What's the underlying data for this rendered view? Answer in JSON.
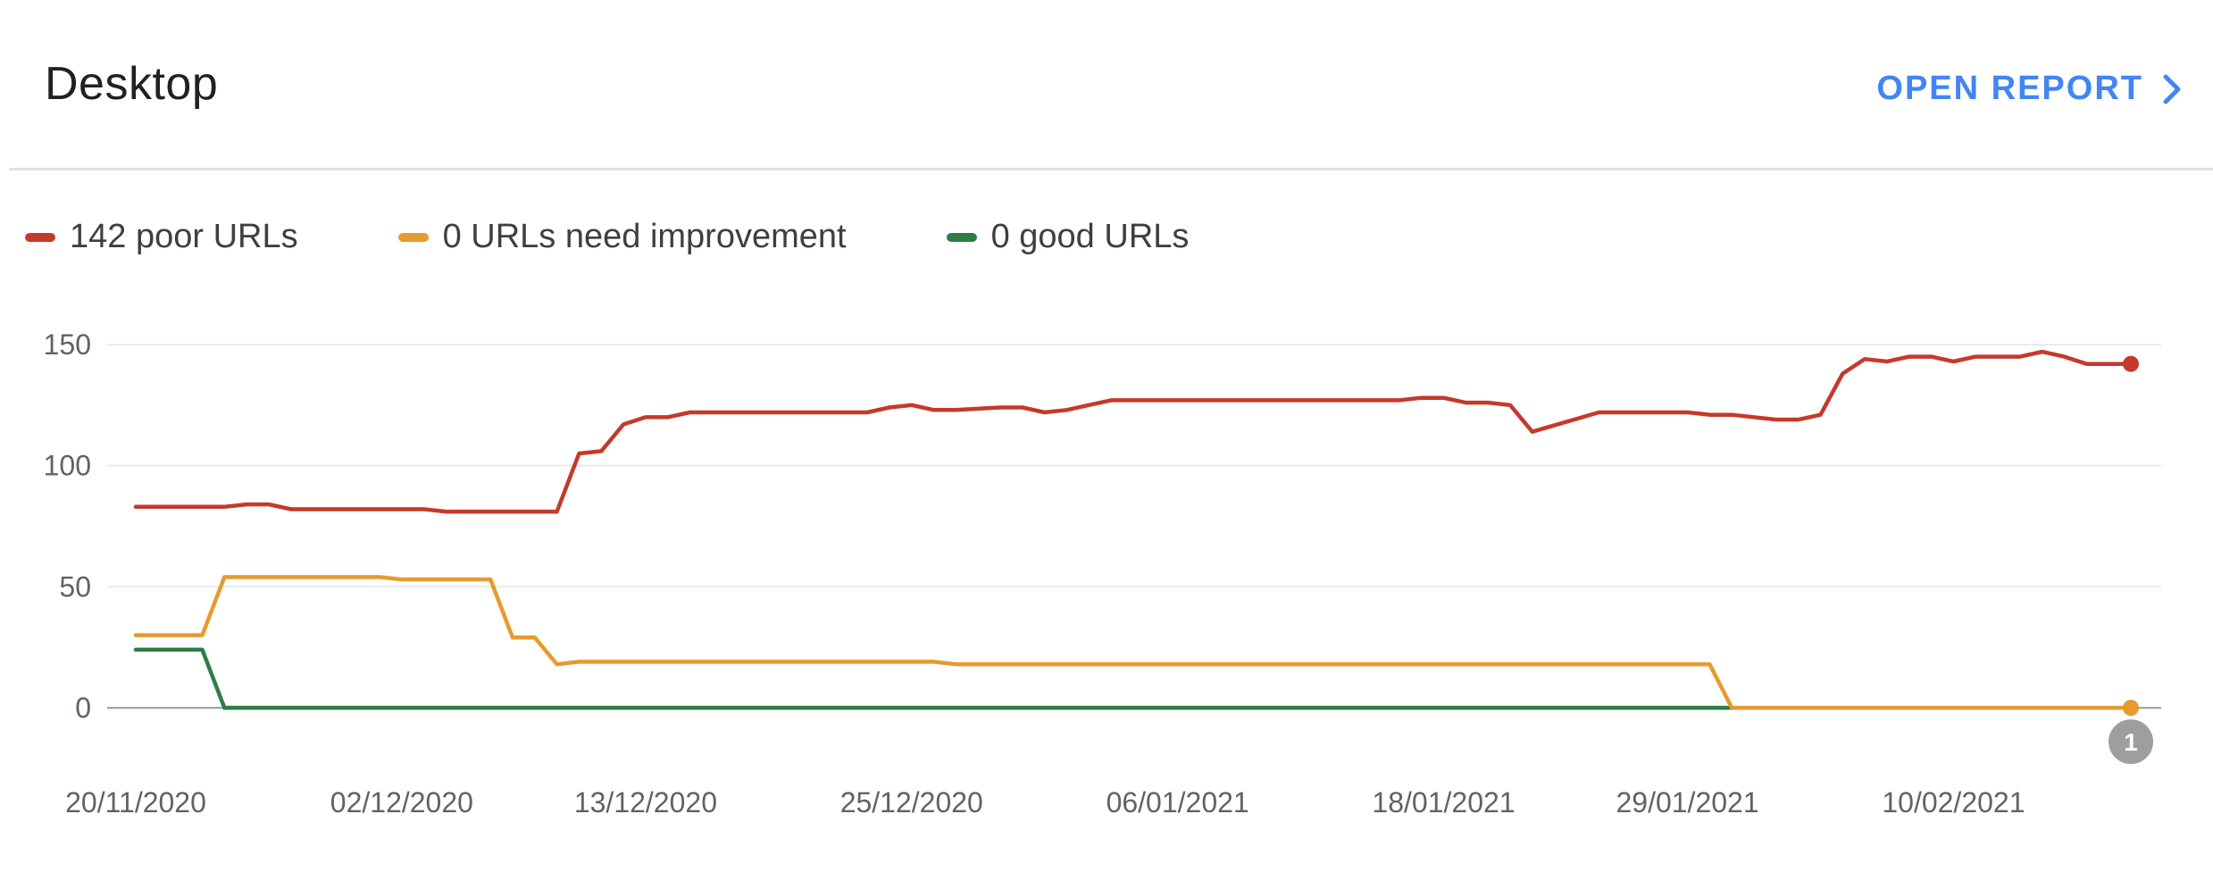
{
  "card": {
    "title": "Desktop",
    "open_report_label": "OPEN REPORT",
    "open_report_icon": "chevron-right-icon",
    "accent_color": "#4285f4"
  },
  "legend": [
    {
      "label": "142 poor URLs",
      "color": "#c5392b"
    },
    {
      "label": "0 URLs need improvement",
      "color": "#e69b2e"
    },
    {
      "label": "0 good URLs",
      "color": "#2e7d45"
    }
  ],
  "chart_data": {
    "type": "line",
    "ylim": [
      0,
      150
    ],
    "yticks": [
      0,
      50,
      100,
      150
    ],
    "grid": true,
    "legend_position": "top-left",
    "x_range": [
      "20/11/2020",
      "18/02/2021"
    ],
    "xticks": [
      "20/11/2020",
      "02/12/2020",
      "13/12/2020",
      "25/12/2020",
      "06/01/2021",
      "18/01/2021",
      "29/01/2021",
      "10/02/2021"
    ],
    "annotations": [
      {
        "label": "1",
        "x": "18/02/2021"
      }
    ],
    "series": [
      {
        "name": "142 poor URLs",
        "color": "#c5392b",
        "x": [
          "20/11/2020",
          "24/11/2020",
          "25/11/2020",
          "26/11/2020",
          "27/11/2020",
          "03/12/2020",
          "04/12/2020",
          "09/12/2020",
          "10/12/2020",
          "11/12/2020",
          "12/12/2020",
          "13/12/2020",
          "14/12/2020",
          "15/12/2020",
          "23/12/2020",
          "24/12/2020",
          "25/12/2020",
          "26/12/2020",
          "27/12/2020",
          "29/12/2020",
          "30/12/2020",
          "31/12/2020",
          "01/01/2021",
          "02/01/2021",
          "03/01/2021",
          "05/01/2021",
          "16/01/2021",
          "17/01/2021",
          "18/01/2021",
          "19/01/2021",
          "20/01/2021",
          "21/01/2021",
          "22/01/2021",
          "25/01/2021",
          "29/01/2021",
          "30/01/2021",
          "31/01/2021",
          "02/02/2021",
          "03/02/2021",
          "04/02/2021",
          "05/02/2021",
          "06/02/2021",
          "07/02/2021",
          "08/02/2021",
          "09/02/2021",
          "10/02/2021",
          "11/02/2021",
          "12/02/2021",
          "13/02/2021",
          "14/02/2021",
          "15/02/2021",
          "16/02/2021",
          "17/02/2021",
          "18/02/2021"
        ],
        "values": [
          83,
          83,
          84,
          84,
          82,
          82,
          81,
          81,
          105,
          106,
          117,
          120,
          120,
          122,
          122,
          124,
          125,
          123,
          123,
          124,
          124,
          122,
          123,
          125,
          127,
          127,
          127,
          128,
          128,
          126,
          126,
          125,
          114,
          122,
          122,
          121,
          121,
          119,
          119,
          121,
          138,
          144,
          143,
          145,
          145,
          143,
          145,
          145,
          145,
          147,
          145,
          142,
          142,
          142
        ]
      },
      {
        "name": "0 URLs need improvement",
        "color": "#e69b2e",
        "x": [
          "20/11/2020",
          "23/11/2020",
          "24/11/2020",
          "01/12/2020",
          "02/12/2020",
          "06/12/2020",
          "07/12/2020",
          "08/12/2020",
          "09/12/2020",
          "10/12/2020",
          "26/12/2020",
          "27/12/2020",
          "30/01/2021",
          "31/01/2021",
          "18/02/2021"
        ],
        "values": [
          30,
          30,
          54,
          54,
          53,
          53,
          29,
          29,
          18,
          19,
          19,
          18,
          18,
          0,
          0
        ]
      },
      {
        "name": "0 good URLs",
        "color": "#2e7d45",
        "x": [
          "20/11/2020",
          "23/11/2020",
          "24/11/2020",
          "31/01/2021"
        ],
        "values": [
          24,
          24,
          0,
          0
        ]
      }
    ]
  }
}
